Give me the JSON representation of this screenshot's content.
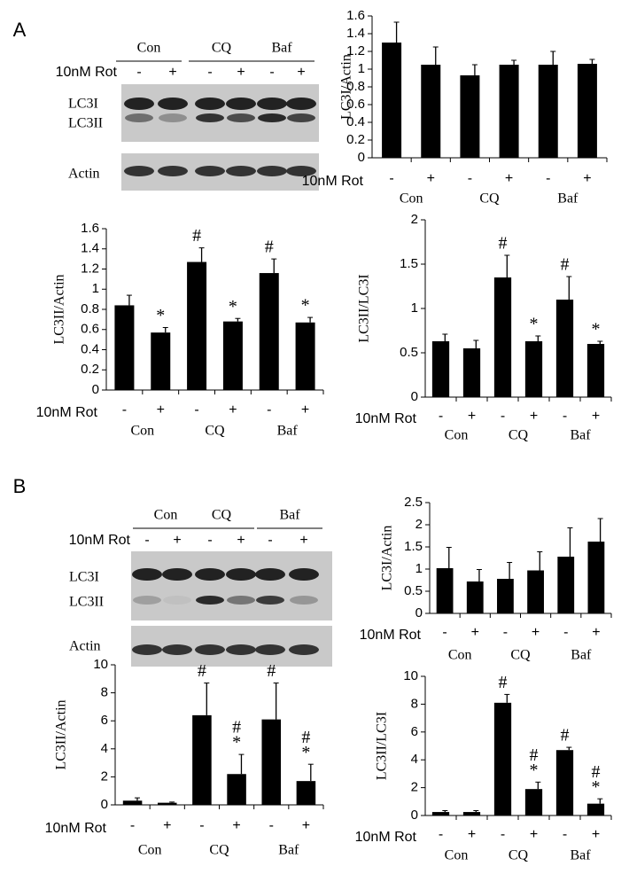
{
  "panels": [
    {
      "letter": "A",
      "blot": {
        "groups": [
          "Con",
          "CQ",
          "Baf"
        ],
        "row_label": "10nM Rot",
        "lanes": [
          "-",
          "+",
          "-",
          "+",
          "-",
          "+"
        ],
        "bands": [
          "LC3I",
          "LC3II",
          "Actin"
        ]
      }
    },
    {
      "letter": "B",
      "blot": {
        "groups": [
          "Con",
          "CQ",
          "Baf"
        ],
        "row_label": "10nM Rot",
        "lanes": [
          "-",
          "+",
          "-",
          "+",
          "-",
          "+"
        ],
        "bands": [
          "LC3I",
          "LC3II",
          "Actin"
        ]
      }
    }
  ],
  "chart_data": [
    {
      "type": "bar",
      "ylabel": "LC3I/Actin",
      "categories": [
        "-",
        "+",
        "-",
        "+",
        "-",
        "+"
      ],
      "groups": [
        "Con",
        "CQ",
        "Baf"
      ],
      "row_label": "10nM Rot",
      "values": [
        1.3,
        1.05,
        0.93,
        1.05,
        1.05,
        1.06
      ],
      "errors": [
        0.23,
        0.2,
        0.12,
        0.05,
        0.15,
        0.05
      ],
      "color": "#000000",
      "ylim": [
        0,
        1.6
      ],
      "yticks": [
        0,
        0.2,
        0.4,
        0.6,
        0.8,
        1,
        1.2,
        1.4,
        1.6
      ],
      "annotations": []
    },
    {
      "type": "bar",
      "ylabel": "LC3II/Actin",
      "categories": [
        "-",
        "+",
        "-",
        "+",
        "-",
        "+"
      ],
      "groups": [
        "Con",
        "CQ",
        "Baf"
      ],
      "row_label": "10nM Rot",
      "values": [
        0.84,
        0.57,
        1.27,
        0.68,
        1.16,
        0.67
      ],
      "errors": [
        0.1,
        0.05,
        0.14,
        0.03,
        0.14,
        0.05
      ],
      "color": "#000000",
      "ylim": [
        0,
        1.6
      ],
      "yticks": [
        0,
        0.2,
        0.4,
        0.6,
        0.8,
        1,
        1.2,
        1.4,
        1.6
      ],
      "annotations": [
        {
          "bar": 1,
          "text": "*"
        },
        {
          "bar": 2,
          "text": "#"
        },
        {
          "bar": 3,
          "text": "*"
        },
        {
          "bar": 4,
          "text": "#"
        },
        {
          "bar": 5,
          "text": "*"
        }
      ]
    },
    {
      "type": "bar",
      "ylabel": "LC3II/LC3I",
      "categories": [
        "-",
        "+",
        "-",
        "+",
        "-",
        "+"
      ],
      "groups": [
        "Con",
        "CQ",
        "Baf"
      ],
      "row_label": "10nM Rot",
      "values": [
        0.63,
        0.55,
        1.35,
        0.63,
        1.1,
        0.6
      ],
      "errors": [
        0.08,
        0.09,
        0.25,
        0.06,
        0.26,
        0.03
      ],
      "color": "#000000",
      "ylim": [
        0,
        2
      ],
      "yticks": [
        0,
        0.5,
        1,
        1.5,
        2
      ],
      "annotations": [
        {
          "bar": 2,
          "text": "#"
        },
        {
          "bar": 3,
          "text": "*"
        },
        {
          "bar": 4,
          "text": "#"
        },
        {
          "bar": 5,
          "text": "*"
        }
      ]
    },
    {
      "type": "bar",
      "ylabel": "LC3I/Actin",
      "categories": [
        "-",
        "+",
        "-",
        "+",
        "-",
        "+"
      ],
      "groups": [
        "Con",
        "CQ",
        "Baf"
      ],
      "row_label": "10nM Rot",
      "values": [
        1.02,
        0.72,
        0.78,
        0.97,
        1.28,
        1.62
      ],
      "errors": [
        0.47,
        0.27,
        0.37,
        0.42,
        0.65,
        0.52
      ],
      "color": "#000000",
      "ylim": [
        0,
        2.5
      ],
      "yticks": [
        0,
        0.5,
        1,
        1.5,
        2,
        2.5
      ],
      "annotations": []
    },
    {
      "type": "bar",
      "ylabel": "LC3II/Actin",
      "categories": [
        "-",
        "+",
        "-",
        "+",
        "-",
        "+"
      ],
      "groups": [
        "Con",
        "CQ",
        "Baf"
      ],
      "row_label": "10nM Rot",
      "values": [
        0.3,
        0.15,
        6.4,
        2.2,
        6.1,
        1.7
      ],
      "errors": [
        0.2,
        0.05,
        2.3,
        1.4,
        2.6,
        1.2
      ],
      "color": "#000000",
      "ylim": [
        0,
        10
      ],
      "yticks": [
        0,
        2,
        4,
        6,
        8,
        10
      ],
      "annotations": [
        {
          "bar": 2,
          "text": "#"
        },
        {
          "bar": 3,
          "text": "#"
        },
        {
          "bar": 3,
          "text": "*"
        },
        {
          "bar": 4,
          "text": "#"
        },
        {
          "bar": 5,
          "text": "#"
        },
        {
          "bar": 5,
          "text": "*"
        }
      ]
    },
    {
      "type": "bar",
      "ylabel": "LC3II/LC3I",
      "categories": [
        "-",
        "+",
        "-",
        "+",
        "-",
        "+"
      ],
      "groups": [
        "Con",
        "CQ",
        "Baf"
      ],
      "row_label": "10nM Rot",
      "values": [
        0.25,
        0.25,
        8.1,
        1.9,
        4.7,
        0.85
      ],
      "errors": [
        0.1,
        0.1,
        0.6,
        0.5,
        0.2,
        0.35
      ],
      "color": "#000000",
      "ylim": [
        0,
        10
      ],
      "yticks": [
        0,
        2,
        4,
        6,
        8,
        10
      ],
      "annotations": [
        {
          "bar": 2,
          "text": "#"
        },
        {
          "bar": 3,
          "text": "#"
        },
        {
          "bar": 3,
          "text": "*"
        },
        {
          "bar": 4,
          "text": "#"
        },
        {
          "bar": 5,
          "text": "#"
        },
        {
          "bar": 5,
          "text": "*"
        }
      ]
    }
  ]
}
